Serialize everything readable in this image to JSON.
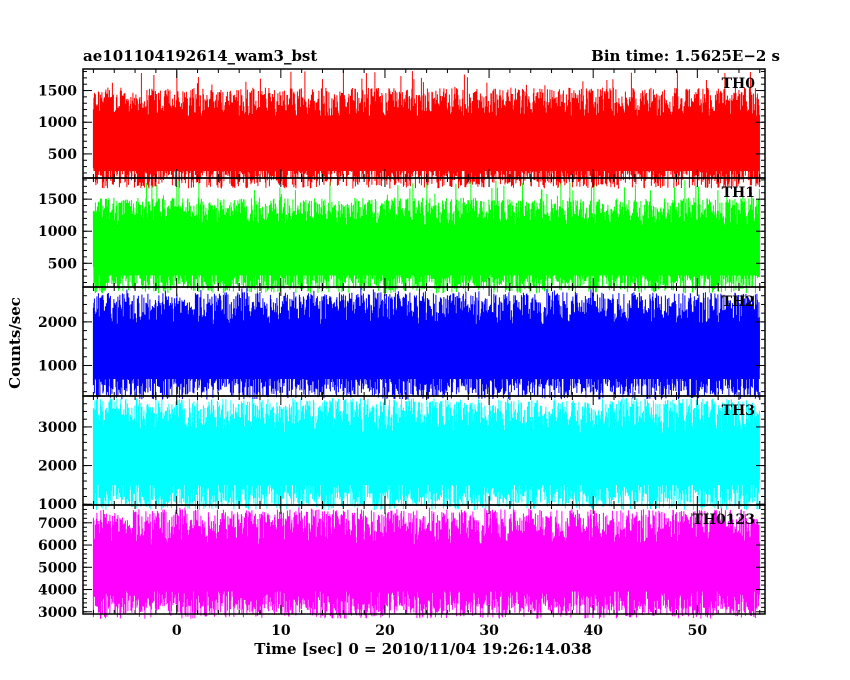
{
  "header": {
    "title": "ae101104192614_wam3_bst",
    "bin_time": "Bin time: 1.5625E−2 s"
  },
  "chart_data": {
    "type": "line",
    "title": "ae101104192614_wam3_bst",
    "subtitle": "Bin time: 1.5625E−2 s",
    "xlabel": "Time [sec] 0 = 2010/11/04 19:26:14.038",
    "ylabel": "Counts/sec",
    "xlim": [
      -9,
      56.5
    ],
    "x_range_data": [
      -8,
      56
    ],
    "x_ticks": [
      0,
      10,
      20,
      30,
      40,
      50
    ],
    "x_tick_labels": [
      "0",
      "10",
      "20",
      "30",
      "40",
      "50"
    ],
    "bin_time": 0.015625,
    "grid": false,
    "panels": [
      {
        "name": "TH0",
        "color": "#ff0000",
        "ylim": [
          120,
          1840
        ],
        "y_ticks": [
          500,
          1000,
          1500
        ],
        "y_tick_labels": [
          "500",
          "1000",
          "1500"
        ],
        "mean": 750,
        "low": 200,
        "high": 1300,
        "min": 140,
        "max": 1830
      },
      {
        "name": "TH1",
        "color": "#00ff00",
        "ylim": [
          130,
          1830
        ],
        "y_ticks": [
          500,
          1000,
          1500
        ],
        "y_tick_labels": [
          "500",
          "1000",
          "1500"
        ],
        "mean": 800,
        "low": 270,
        "high": 1300,
        "min": 150,
        "max": 1800
      },
      {
        "name": "TH2",
        "color": "#0000ff",
        "ylim": [
          300,
          2800
        ],
        "y_ticks": [
          1000,
          2000
        ],
        "y_tick_labels": [
          "1000",
          "2000"
        ],
        "mean": 1450,
        "low": 600,
        "high": 2300,
        "min": 350,
        "max": 2780
      },
      {
        "name": "TH3",
        "color": "#00ffff",
        "ylim": [
          980,
          3800
        ],
        "y_ticks": [
          1000,
          2000,
          3000
        ],
        "y_tick_labels": [
          "1000",
          "2000",
          "3000"
        ],
        "mean": 2300,
        "low": 1300,
        "high": 3300,
        "min": 1000,
        "max": 3750
      },
      {
        "name": "TH0123",
        "color": "#ff00ff",
        "ylim": [
          2900,
          7800
        ],
        "y_ticks": [
          3000,
          4000,
          5000,
          6000,
          7000
        ],
        "y_tick_labels": [
          "3000",
          "4000",
          "5000",
          "6000",
          "7000"
        ],
        "mean": 5000,
        "low": 3400,
        "high": 6800,
        "min": 3000,
        "max": 7700
      }
    ]
  }
}
